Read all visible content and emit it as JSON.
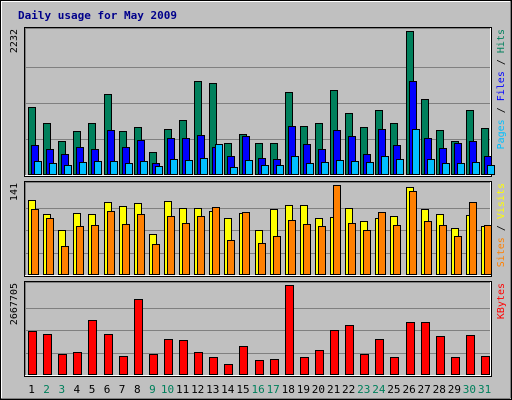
{
  "chart_data": [
    {
      "type": "bar",
      "title": "Daily usage for May 2009",
      "categories": [
        "1",
        "2",
        "3",
        "4",
        "5",
        "6",
        "7",
        "8",
        "9",
        "10",
        "11",
        "12",
        "13",
        "14",
        "15",
        "16",
        "17",
        "18",
        "19",
        "20",
        "21",
        "22",
        "23",
        "24",
        "25",
        "26",
        "27",
        "28",
        "29",
        "30",
        "31"
      ],
      "weekend_days": [
        "2",
        "3",
        "9",
        "10",
        "16",
        "17",
        "23",
        "24",
        "30",
        "31"
      ],
      "ylabel_parts": [
        "Pages",
        "Files",
        "Hits"
      ],
      "ylabel_separator": " / ",
      "y_max_label": "2232",
      "ylim": [
        0,
        2232
      ],
      "series": [
        {
          "name": "Hits",
          "color": "#00805c",
          "values": [
            1050,
            800,
            520,
            680,
            810,
            1260,
            680,
            750,
            360,
            710,
            850,
            1450,
            1420,
            490,
            630,
            500,
            500,
            1280,
            760,
            800,
            1310,
            960,
            750,
            1000,
            800,
            2232,
            1180,
            700,
            520,
            1010,
            730
          ]
        },
        {
          "name": "Files",
          "color": "#0000ff",
          "values": [
            470,
            400,
            320,
            430,
            400,
            690,
            430,
            540,
            190,
            580,
            580,
            620,
            440,
            290,
            610,
            260,
            250,
            760,
            480,
            400,
            700,
            610,
            320,
            720,
            460,
            1450,
            580,
            420,
            500,
            520,
            300
          ]
        },
        {
          "name": "Pages",
          "color": "#00bfff",
          "values": [
            210,
            180,
            160,
            200,
            210,
            220,
            180,
            220,
            140,
            250,
            240,
            270,
            480,
            120,
            230,
            150,
            150,
            290,
            190,
            200,
            240,
            220,
            200,
            290,
            250,
            720,
            250,
            190,
            190,
            200,
            150
          ]
        }
      ]
    },
    {
      "type": "bar",
      "categories": [
        "1",
        "2",
        "3",
        "4",
        "5",
        "6",
        "7",
        "8",
        "9",
        "10",
        "11",
        "12",
        "13",
        "14",
        "15",
        "16",
        "17",
        "18",
        "19",
        "20",
        "21",
        "22",
        "23",
        "24",
        "25",
        "26",
        "27",
        "28",
        "29",
        "30",
        "31"
      ],
      "ylabel_parts": [
        "Sites",
        "Visits"
      ],
      "ylabel_separator": " / ",
      "y_max_label": "141",
      "ylim": [
        0,
        141
      ],
      "series": [
        {
          "name": "Visits",
          "color": "#ffff00",
          "values": [
            118,
            96,
            70,
            97,
            95,
            114,
            108,
            113,
            64,
            116,
            105,
            105,
            101,
            89,
            97,
            71,
            104,
            109,
            109,
            90,
            91,
            105,
            84,
            89,
            92,
            138,
            104,
            95,
            74,
            94,
            77
          ]
        },
        {
          "name": "Sites",
          "color": "#ff8000",
          "values": [
            104,
            90,
            45,
            77,
            79,
            100,
            80,
            96,
            48,
            93,
            82,
            93,
            107,
            55,
            99,
            50,
            61,
            86,
            80,
            77,
            141,
            82,
            71,
            98,
            79,
            132,
            85,
            79,
            61,
            115,
            78
          ]
        }
      ]
    },
    {
      "type": "bar",
      "categories": [
        "1",
        "2",
        "3",
        "4",
        "5",
        "6",
        "7",
        "8",
        "9",
        "10",
        "11",
        "12",
        "13",
        "14",
        "15",
        "16",
        "17",
        "18",
        "19",
        "20",
        "21",
        "22",
        "23",
        "24",
        "25",
        "26",
        "27",
        "28",
        "29",
        "30",
        "31"
      ],
      "ylabel_parts": [
        "KBytes"
      ],
      "ylabel_separator": "",
      "y_max_label": "2667705",
      "ylim": [
        0,
        2667705
      ],
      "series": [
        {
          "name": "KBytes",
          "color": "#ff0000",
          "values": [
            1290000,
            1210000,
            630000,
            690000,
            1620000,
            1210000,
            570000,
            2260000,
            610000,
            1060000,
            1050000,
            690000,
            540000,
            320000,
            860000,
            430000,
            460000,
            2667705,
            540000,
            740000,
            1330000,
            1490000,
            610000,
            1060000,
            530000,
            1560000,
            1560000,
            1150000,
            530000,
            1180000,
            570000
          ]
        }
      ]
    }
  ]
}
